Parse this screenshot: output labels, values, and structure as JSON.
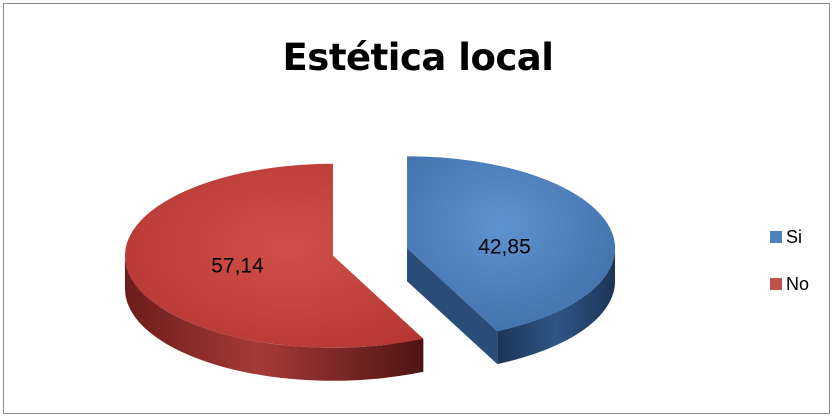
{
  "chart_data": {
    "type": "pie",
    "title": "Estética local",
    "slices": [
      {
        "label": "Si",
        "value": 42.85,
        "value_label": "42,85",
        "color": "#4f81bd"
      },
      {
        "label": "No",
        "value": 57.14,
        "value_label": "57,14",
        "color": "#c0504d"
      }
    ],
    "style": "3d-exploded",
    "legend_position": "right"
  }
}
